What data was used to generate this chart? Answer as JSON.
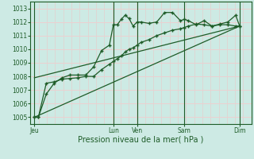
{
  "xlabel": "Pression niveau de la mer( hPa )",
  "bg_color": "#cdeae4",
  "grid_color": "#b8ddd7",
  "line_color": "#1e5c28",
  "ylim": [
    1004.5,
    1013.5
  ],
  "yticks": [
    1005,
    1006,
    1007,
    1008,
    1009,
    1010,
    1011,
    1012,
    1013
  ],
  "xtick_labels": [
    "Jeu",
    "Lun",
    "Ven",
    "Sam",
    "Dim"
  ],
  "xtick_positions": [
    0,
    10,
    13,
    19,
    26
  ],
  "xmax": 27,
  "series1_x": [
    0,
    0.5,
    1.5,
    2.5,
    3.5,
    4.5,
    5.5,
    6.5,
    7.5,
    8.5,
    9.5,
    10,
    10.5,
    11,
    11.5,
    12,
    12.5,
    13,
    13.5,
    14.5,
    15.5,
    16.5,
    17.5,
    18.5,
    19,
    19.5,
    20.5,
    21.5,
    22.5,
    23.5,
    24.5,
    25.5,
    26
  ],
  "series1_y": [
    1005.0,
    1005.0,
    1006.7,
    1007.5,
    1007.9,
    1008.1,
    1008.1,
    1008.1,
    1008.7,
    1009.9,
    1010.3,
    1011.8,
    1011.8,
    1012.2,
    1012.5,
    1012.25,
    1011.7,
    1012.0,
    1012.0,
    1011.9,
    1012.0,
    1012.7,
    1012.7,
    1012.1,
    1012.2,
    1012.1,
    1011.8,
    1012.1,
    1011.7,
    1011.85,
    1012.0,
    1012.5,
    1011.7
  ],
  "series2_x": [
    0,
    0.5,
    1.5,
    2.5,
    3.5,
    4.5,
    5.5,
    6.5,
    7.5,
    8.5,
    9.5,
    10,
    10.5,
    11,
    11.5,
    12,
    12.5,
    13,
    13.5,
    14.5,
    15.5,
    16.5,
    17.5,
    18.5,
    19,
    19.5,
    20.5,
    21.5,
    22.5,
    23.5,
    24.5,
    25.5,
    26
  ],
  "series2_y": [
    1005.0,
    1005.0,
    1007.5,
    1007.6,
    1007.8,
    1007.85,
    1007.9,
    1008.0,
    1008.0,
    1008.5,
    1008.9,
    1009.1,
    1009.3,
    1009.5,
    1009.8,
    1010.0,
    1010.1,
    1010.3,
    1010.5,
    1010.7,
    1011.0,
    1011.2,
    1011.4,
    1011.5,
    1011.6,
    1011.7,
    1011.85,
    1011.8,
    1011.7,
    1011.8,
    1011.8,
    1011.7,
    1011.7
  ],
  "series3_x": [
    0,
    26
  ],
  "series3_y": [
    1005.0,
    1011.7
  ],
  "series4_x": [
    0,
    26
  ],
  "series4_y": [
    1007.9,
    1011.7
  ],
  "vlines_x": [
    0,
    10,
    13,
    19,
    26
  ]
}
